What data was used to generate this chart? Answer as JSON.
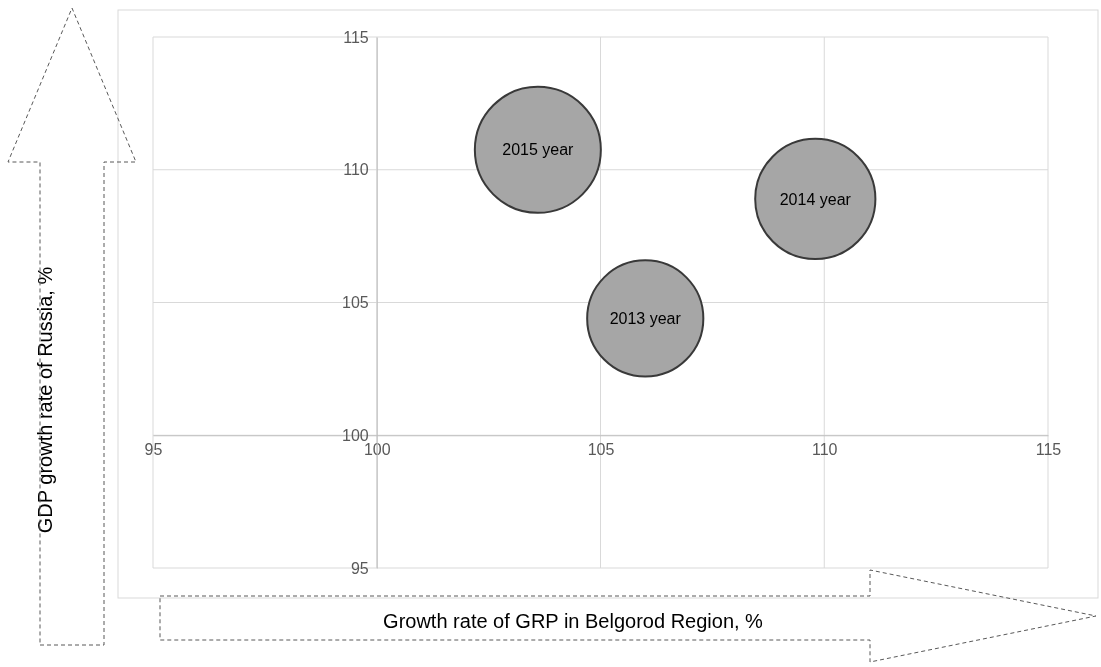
{
  "chart_data": {
    "type": "bubble",
    "xlabel": "Growth rate of GRP in Belgorod Region, %",
    "ylabel": "GDP growth rate of Russia, %",
    "x": [
      106.0,
      109.8,
      103.6
    ],
    "values": [
      104.4,
      108.9,
      110.75
    ],
    "sizes": [
      0.85,
      0.91,
      1
    ],
    "color": "#a6a6a6",
    "xlim": [
      95,
      115
    ],
    "ylim": [
      95,
      115
    ],
    "xticks": [
      95,
      100,
      105,
      110,
      115
    ],
    "yticks": [
      95,
      100,
      105,
      110,
      115
    ],
    "grid": true,
    "annotations": [
      {
        "text": "2013 year",
        "x": 106.0,
        "y": 104.4
      },
      {
        "text": "2014 year",
        "x": 109.8,
        "y": 108.9
      },
      {
        "text": "2015 year",
        "x": 103.6,
        "y": 110.75
      }
    ]
  }
}
